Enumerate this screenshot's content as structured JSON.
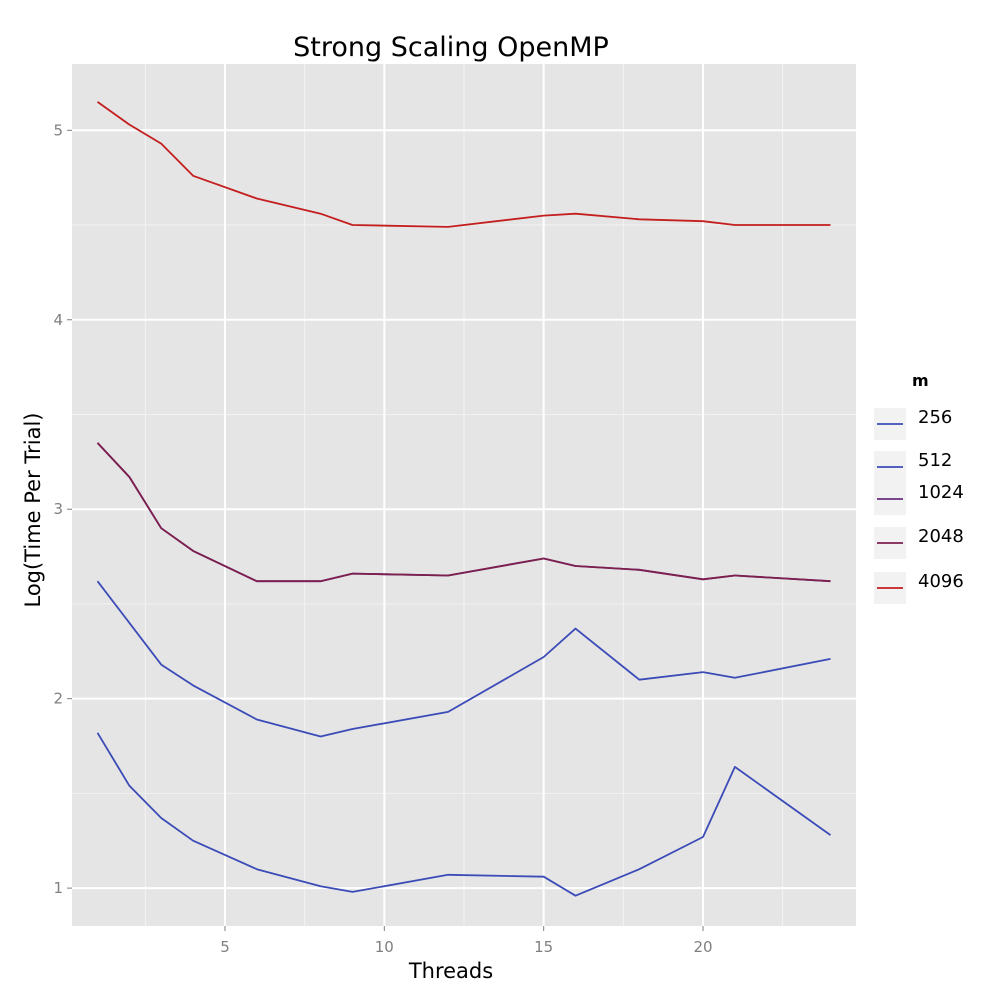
{
  "chart_data": {
    "type": "line",
    "title": "Strong Scaling OpenMP",
    "xlabel": "Threads",
    "ylabel": "Log(Time Per Trial)",
    "xlim": [
      0.2,
      24.8
    ],
    "ylim": [
      0.8,
      5.35
    ],
    "xticks": [
      5,
      10,
      15,
      20
    ],
    "yticks": [
      1,
      2,
      3,
      4,
      5
    ],
    "grid": true,
    "legend": {
      "title": "m",
      "position": "right"
    },
    "x": [
      1,
      2,
      3,
      4,
      6,
      8,
      9,
      12,
      15,
      16,
      18,
      20,
      21,
      24
    ],
    "series": [
      {
        "name": "256",
        "color": "#3b4bb7",
        "values": [
          1.82,
          1.54,
          1.37,
          1.25,
          1.1,
          1.01,
          0.98,
          1.07,
          1.06,
          0.96,
          1.1,
          1.27,
          1.64,
          1.28
        ]
      },
      {
        "name": "512",
        "color": "#3b4bb7",
        "values": [
          2.62,
          2.4,
          2.18,
          2.07,
          1.89,
          1.8,
          1.84,
          1.93,
          2.22,
          2.37,
          2.1,
          2.14,
          2.11,
          2.21
        ]
      },
      {
        "name": "1024",
        "color": "#6a3080",
        "values": [
          3.35,
          3.17,
          2.9,
          2.78,
          2.62,
          2.62,
          2.66,
          2.65,
          2.74,
          2.7,
          2.68,
          2.63,
          2.65,
          2.62
        ]
      },
      {
        "name": "2048",
        "color": "#7d1f4f",
        "values": [
          3.35,
          3.17,
          2.9,
          2.78,
          2.62,
          2.62,
          2.66,
          2.65,
          2.74,
          2.7,
          2.68,
          2.63,
          2.65,
          2.62
        ]
      },
      {
        "name": "4096",
        "color": "#c41e1e",
        "values": [
          5.15,
          5.03,
          4.93,
          4.76,
          4.64,
          4.56,
          4.5,
          4.49,
          4.55,
          4.56,
          4.53,
          4.52,
          4.5,
          4.5
        ]
      }
    ]
  }
}
